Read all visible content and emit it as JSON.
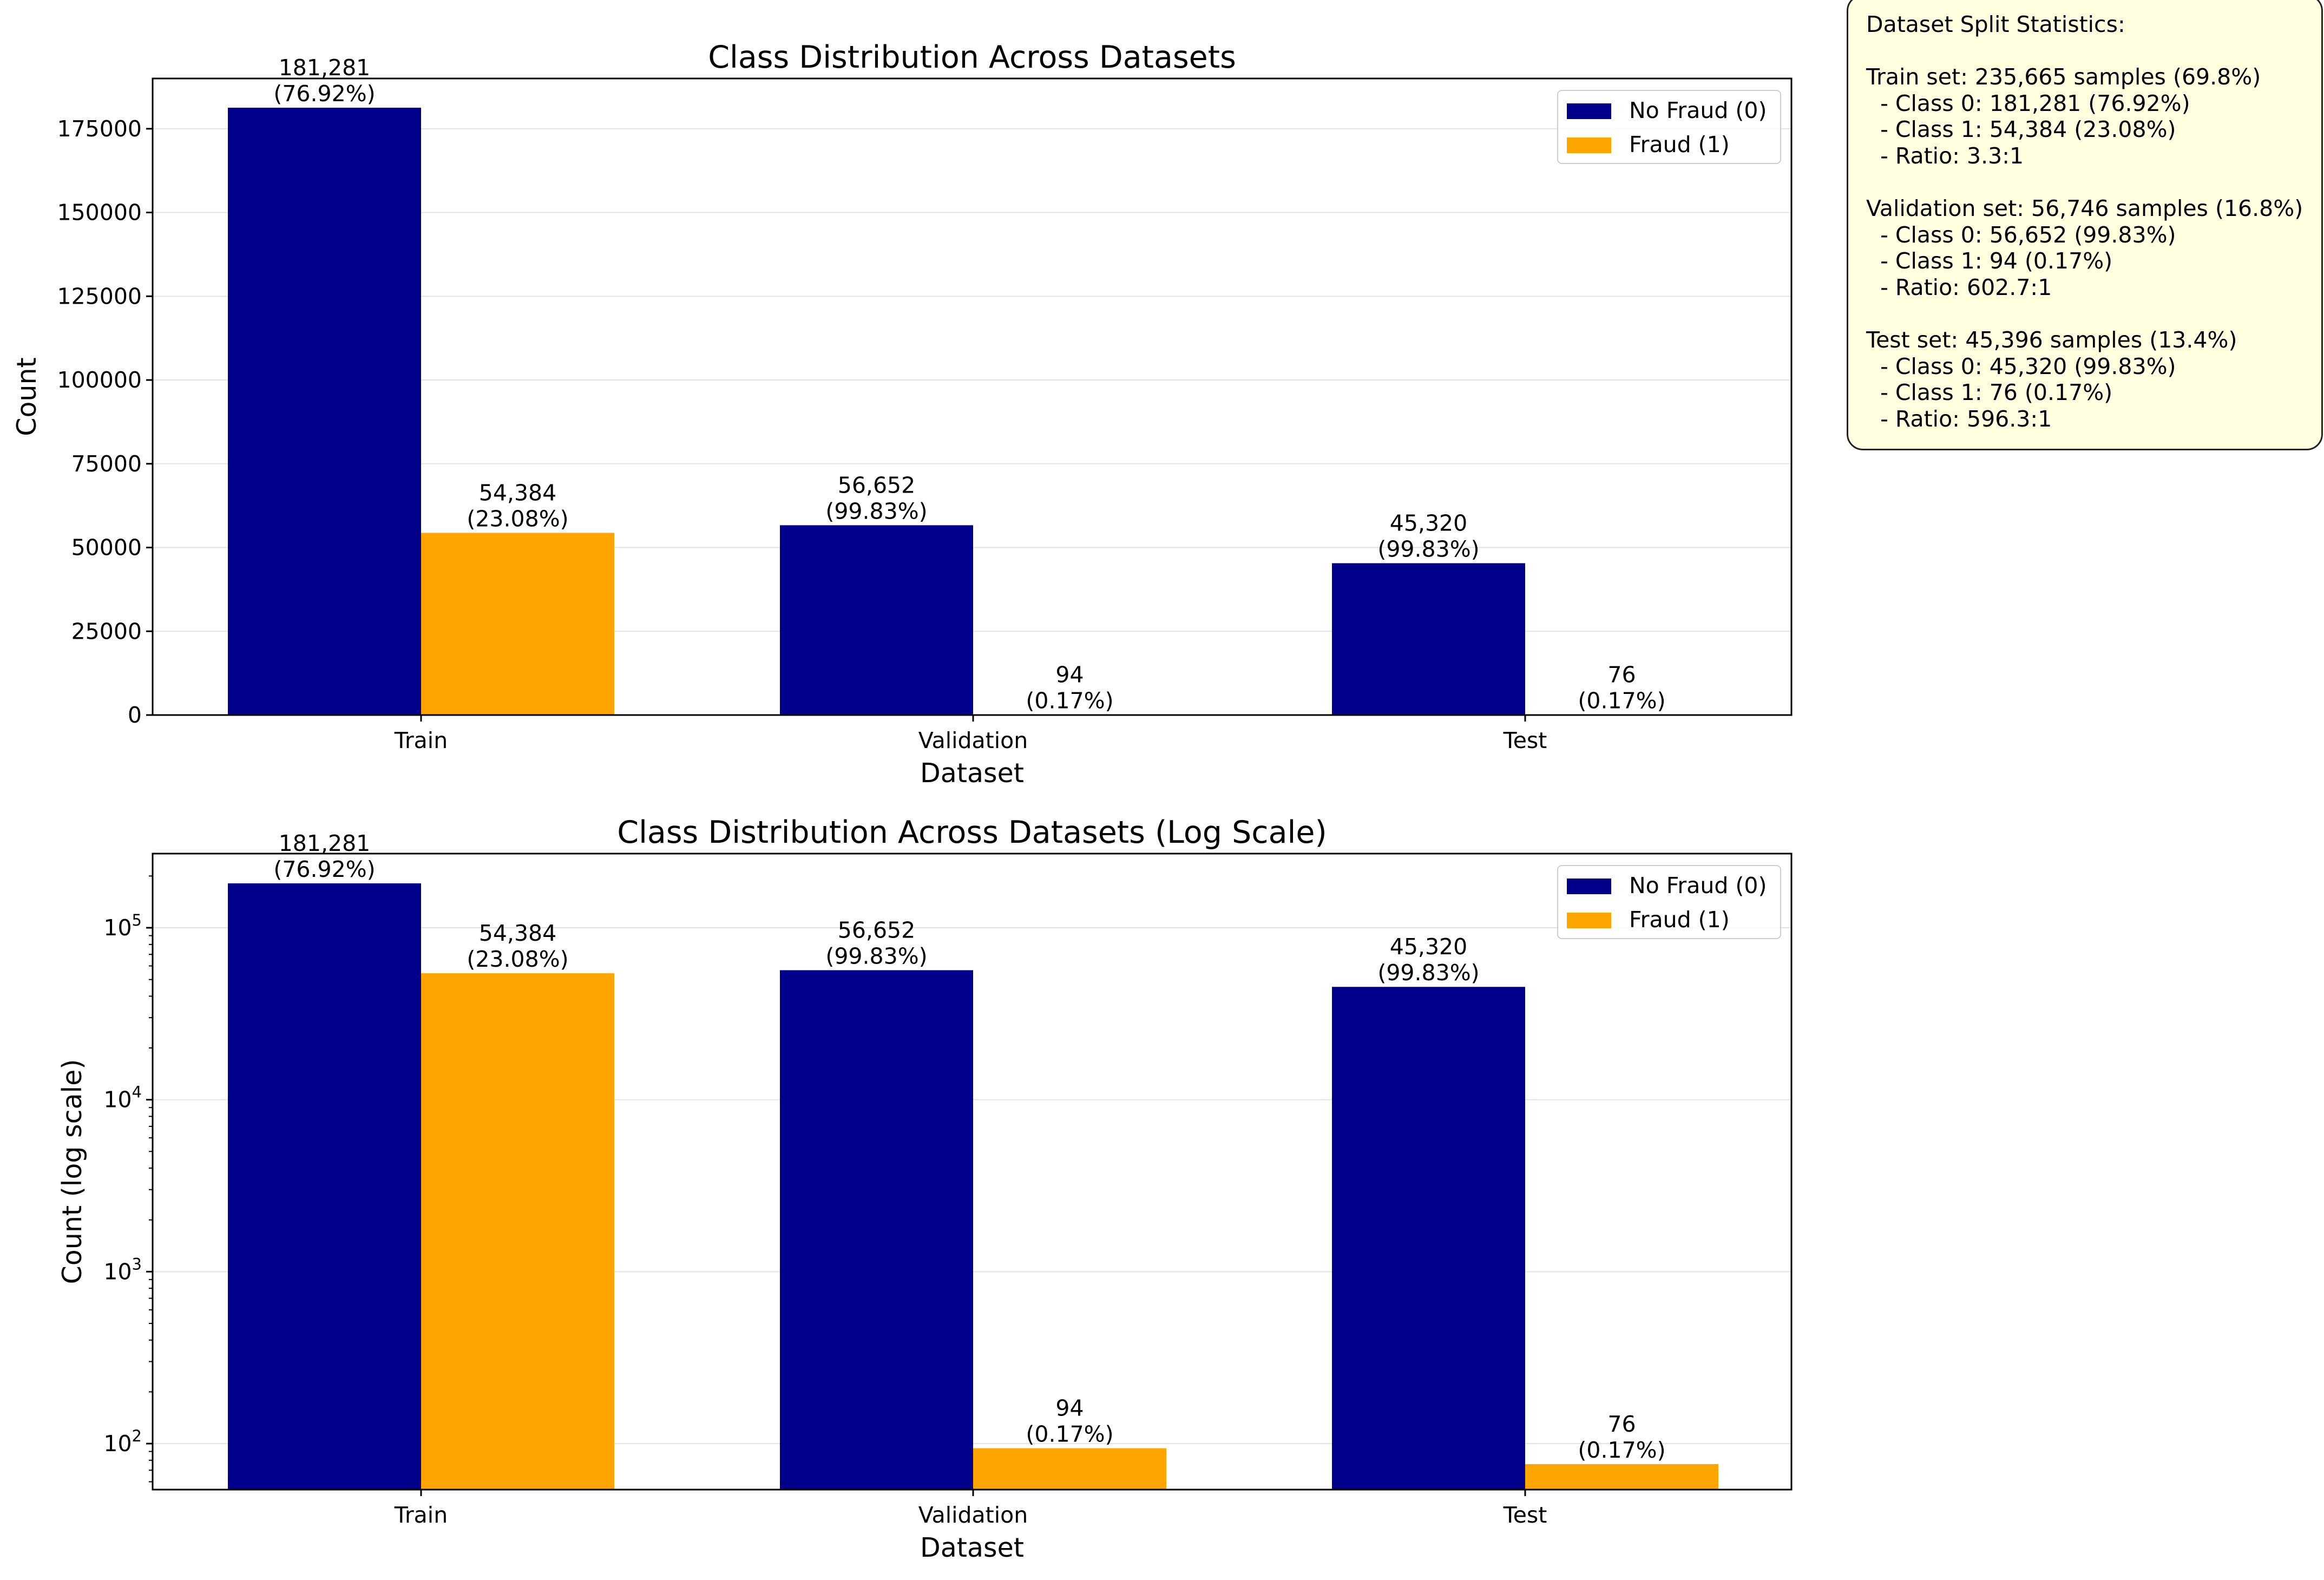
{
  "chart_data": [
    {
      "type": "bar",
      "title": "Class Distribution Across Datasets",
      "xlabel": "Dataset",
      "ylabel": "Count",
      "yscale": "linear",
      "ylim": [
        0,
        190000
      ],
      "yticks": [
        0,
        25000,
        50000,
        75000,
        100000,
        125000,
        150000,
        175000
      ],
      "grid": "y",
      "legend_position": "top-right",
      "categories": [
        "Train",
        "Validation",
        "Test"
      ],
      "series": [
        {
          "name": "No Fraud (0)",
          "color": "#00008b",
          "values": [
            181281,
            56652,
            45320
          ],
          "labels": [
            "181,281\n(76.92%)",
            "56,652\n(99.83%)",
            "45,320\n(99.83%)"
          ]
        },
        {
          "name": "Fraud (1)",
          "color": "#ffa500",
          "values": [
            54384,
            94,
            76
          ],
          "labels": [
            "54,384\n(23.08%)",
            "94\n(0.17%)",
            "76\n(0.17%)"
          ]
        }
      ]
    },
    {
      "type": "bar",
      "title": "Class Distribution Across Datasets (Log Scale)",
      "xlabel": "Dataset",
      "ylabel": "Count (log scale)",
      "yscale": "log",
      "ylim": [
        54,
        270000
      ],
      "yticks": [
        100,
        1000,
        10000,
        100000
      ],
      "grid": "y",
      "legend_position": "top-right",
      "categories": [
        "Train",
        "Validation",
        "Test"
      ],
      "series": [
        {
          "name": "No Fraud (0)",
          "color": "#00008b",
          "values": [
            181281,
            56652,
            45320
          ],
          "labels": [
            "181,281\n(76.92%)",
            "56,652\n(99.83%)",
            "45,320\n(99.83%)"
          ]
        },
        {
          "name": "Fraud (1)",
          "color": "#ffa500",
          "values": [
            54384,
            94,
            76
          ],
          "labels": [
            "54,384\n(23.08%)",
            "94\n(0.17%)",
            "76\n(0.17%)"
          ]
        }
      ]
    }
  ],
  "stats_box": {
    "lines": [
      "Dataset Split Statistics:",
      "",
      "Train set: 235,665 samples (69.8%)",
      "  - Class 0: 181,281 (76.92%)",
      "  - Class 1: 54,384 (23.08%)",
      "  - Ratio: 3.3:1",
      "",
      "Validation set: 56,746 samples (16.8%)",
      "  - Class 0: 56,652 (99.83%)",
      "  - Class 1: 94 (0.17%)",
      "  - Ratio: 602.7:1",
      "",
      "Test set: 45,396 samples (13.4%)",
      "  - Class 0: 45,320 (99.83%)",
      "  - Class 1: 76 (0.17%)",
      "  - Ratio: 596.3:1"
    ],
    "background": "#ffffe0"
  }
}
